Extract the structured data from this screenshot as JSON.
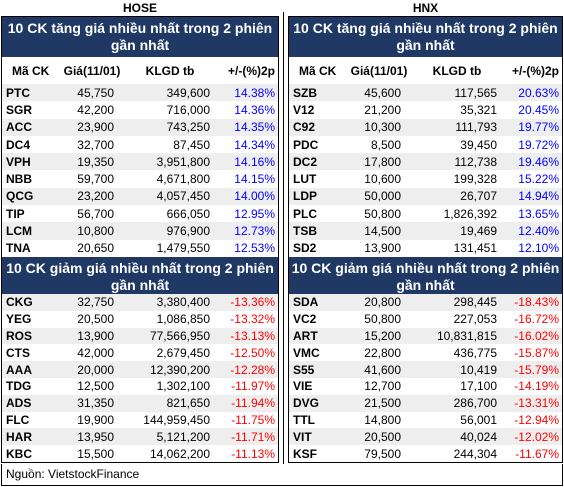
{
  "exchanges": {
    "hose": "HOSE",
    "hnx": "HNX"
  },
  "gainers_title": "10 CK tăng giá nhiều nhất trong 2 phiên gần nhất",
  "losers_title": "10 CK giảm giá nhiều nhất trong 2 phiên gần nhất",
  "columns": {
    "symbol": "Mã CK",
    "price": "Giá(11/01)",
    "volume": "KLGD tb",
    "change": "+/-(%)2p"
  },
  "colors": {
    "header_bg": "#1f3864",
    "up": "#0000ff",
    "down": "#ff0000",
    "alt_row": "#eeeeee"
  },
  "hose": {
    "gainers": [
      {
        "symbol": "PTC",
        "price": "45,750",
        "volume": "349,600",
        "change": "14.38%"
      },
      {
        "symbol": "SGR",
        "price": "42,200",
        "volume": "716,000",
        "change": "14.36%"
      },
      {
        "symbol": "ACC",
        "price": "23,900",
        "volume": "743,250",
        "change": "14.35%"
      },
      {
        "symbol": "DC4",
        "price": "32,700",
        "volume": "87,450",
        "change": "14.34%"
      },
      {
        "symbol": "VPH",
        "price": "19,350",
        "volume": "3,951,800",
        "change": "14.16%"
      },
      {
        "symbol": "NBB",
        "price": "59,700",
        "volume": "4,671,800",
        "change": "14.15%"
      },
      {
        "symbol": "QCG",
        "price": "23,200",
        "volume": "4,057,450",
        "change": "14.00%"
      },
      {
        "symbol": "TIP",
        "price": "56,700",
        "volume": "666,050",
        "change": "12.95%"
      },
      {
        "symbol": "LCM",
        "price": "10,800",
        "volume": "976,900",
        "change": "12.73%"
      },
      {
        "symbol": "TNA",
        "price": "20,650",
        "volume": "1,479,550",
        "change": "12.53%"
      }
    ],
    "losers": [
      {
        "symbol": "CKG",
        "price": "32,750",
        "volume": "3,380,400",
        "change": "-13.36%"
      },
      {
        "symbol": "YEG",
        "price": "20,500",
        "volume": "1,086,850",
        "change": "-13.32%"
      },
      {
        "symbol": "ROS",
        "price": "13,900",
        "volume": "77,566,950",
        "change": "-13.13%"
      },
      {
        "symbol": "CTS",
        "price": "42,000",
        "volume": "2,679,450",
        "change": "-12.50%"
      },
      {
        "symbol": "AAA",
        "price": "20,000",
        "volume": "12,390,200",
        "change": "-12.28%"
      },
      {
        "symbol": "TDG",
        "price": "12,500",
        "volume": "1,302,100",
        "change": "-11.97%"
      },
      {
        "symbol": "ADS",
        "price": "31,350",
        "volume": "821,650",
        "change": "-11.94%"
      },
      {
        "symbol": "FLC",
        "price": "19,900",
        "volume": "144,959,450",
        "change": "-11.75%"
      },
      {
        "symbol": "HAR",
        "price": "13,950",
        "volume": "5,121,200",
        "change": "-11.71%"
      },
      {
        "symbol": "KBC",
        "price": "15,500",
        "volume": "14,062,200",
        "change": "-11.13%"
      }
    ]
  },
  "hnx": {
    "gainers": [
      {
        "symbol": "SZB",
        "price": "45,600",
        "volume": "117,565",
        "change": "20.63%"
      },
      {
        "symbol": "V12",
        "price": "21,200",
        "volume": "35,321",
        "change": "20.45%"
      },
      {
        "symbol": "C92",
        "price": "10,300",
        "volume": "111,793",
        "change": "19.77%"
      },
      {
        "symbol": "PDC",
        "price": "8,500",
        "volume": "39,450",
        "change": "19.72%"
      },
      {
        "symbol": "DC2",
        "price": "17,800",
        "volume": "112,738",
        "change": "19.46%"
      },
      {
        "symbol": "LUT",
        "price": "10,600",
        "volume": "199,328",
        "change": "15.22%"
      },
      {
        "symbol": "LDP",
        "price": "50,000",
        "volume": "26,707",
        "change": "14.94%"
      },
      {
        "symbol": "PLC",
        "price": "50,800",
        "volume": "1,826,392",
        "change": "13.65%"
      },
      {
        "symbol": "TSB",
        "price": "14,500",
        "volume": "19,469",
        "change": "12.40%"
      },
      {
        "symbol": "SD2",
        "price": "13,900",
        "volume": "131,451",
        "change": "12.10%"
      }
    ],
    "losers": [
      {
        "symbol": "SDA",
        "price": "20,800",
        "volume": "298,445",
        "change": "-18.43%"
      },
      {
        "symbol": "VC2",
        "price": "50,800",
        "volume": "227,053",
        "change": "-16.72%"
      },
      {
        "symbol": "ART",
        "price": "15,200",
        "volume": "10,831,815",
        "change": "-16.02%"
      },
      {
        "symbol": "VMC",
        "price": "22,800",
        "volume": "436,775",
        "change": "-15.87%"
      },
      {
        "symbol": "S55",
        "price": "41,600",
        "volume": "10,419",
        "change": "-15.79%"
      },
      {
        "symbol": "VIE",
        "price": "12,700",
        "volume": "17,100",
        "change": "-14.19%"
      },
      {
        "symbol": "DVG",
        "price": "21,500",
        "volume": "286,700",
        "change": "-13.31%"
      },
      {
        "symbol": "TTL",
        "price": "14,800",
        "volume": "56,001",
        "change": "-12.94%"
      },
      {
        "symbol": "VIT",
        "price": "20,500",
        "volume": "40,024",
        "change": "-12.02%"
      },
      {
        "symbol": "KSF",
        "price": "79,500",
        "volume": "244,304",
        "change": "-11.67%"
      }
    ]
  },
  "source": "Nguồn: VietstockFinance"
}
